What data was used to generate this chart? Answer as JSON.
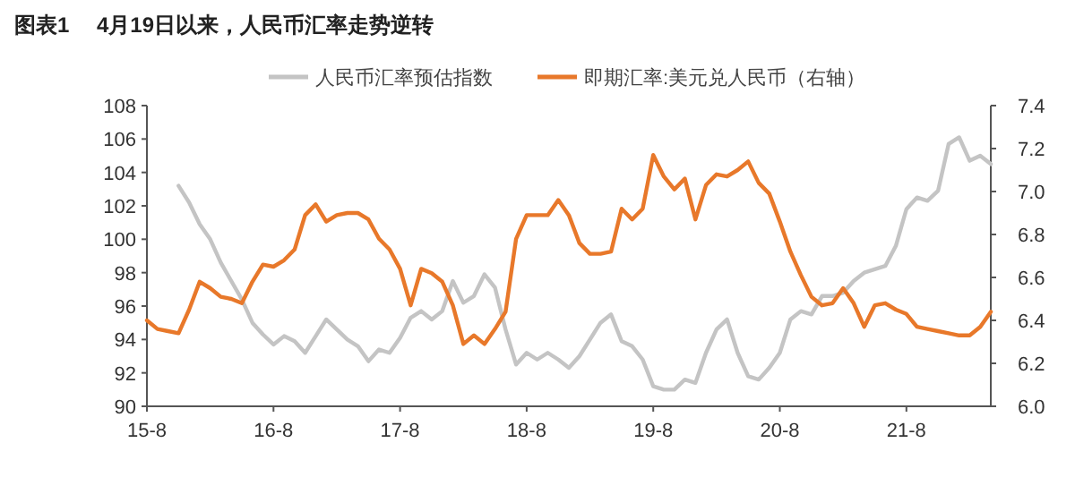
{
  "chart_data": {
    "type": "line",
    "title": "图表1　 4月19日以来，人民币汇率走势逆转",
    "legend": "top",
    "grid": false,
    "marker": "none",
    "line_style": "solid",
    "categories": [
      "15-8",
      null,
      null,
      null,
      null,
      null,
      null,
      null,
      null,
      null,
      null,
      null,
      "16-8",
      null,
      null,
      null,
      null,
      null,
      null,
      null,
      null,
      null,
      null,
      null,
      "17-8",
      null,
      null,
      null,
      null,
      null,
      null,
      null,
      null,
      null,
      null,
      null,
      "18-8",
      null,
      null,
      null,
      null,
      null,
      null,
      null,
      null,
      null,
      null,
      null,
      "19-8",
      null,
      null,
      null,
      null,
      null,
      null,
      null,
      null,
      null,
      null,
      null,
      "20-8",
      null,
      null,
      null,
      null,
      null,
      null,
      null,
      null,
      null,
      null,
      null,
      "21-8",
      null,
      null,
      null,
      null,
      null,
      null,
      null,
      null
    ],
    "ylim": [
      90,
      108
    ],
    "yticks": [
      90,
      92,
      94,
      96,
      98,
      100,
      102,
      104,
      106,
      108
    ],
    "y2lim": [
      6.0,
      7.4
    ],
    "y2ticks": [
      {
        "value": 6.0,
        "label": "6.0"
      },
      {
        "value": 6.2,
        "label": "6.2"
      },
      {
        "value": 6.4,
        "label": "6.4"
      },
      {
        "value": 6.6,
        "label": "6.6"
      },
      {
        "value": 6.8,
        "label": "6.8"
      },
      {
        "value": 7.0,
        "label": "7.0"
      },
      {
        "value": 7.2,
        "label": "7.2"
      },
      {
        "value": 7.4,
        "label": "7.4"
      }
    ],
    "series": [
      {
        "name": "人民币汇率预估指数",
        "color": "#c4c4c4",
        "axis": "y",
        "values": [
          null,
          null,
          null,
          103.2,
          102.2,
          100.9,
          100.0,
          98.6,
          97.5,
          96.4,
          95.0,
          94.3,
          93.7,
          94.2,
          93.9,
          93.2,
          94.2,
          95.2,
          94.6,
          94.0,
          93.6,
          92.7,
          93.4,
          93.2,
          94.1,
          95.3,
          95.7,
          95.2,
          95.7,
          97.5,
          96.2,
          96.6,
          97.9,
          97.1,
          94.6,
          92.5,
          93.2,
          92.8,
          93.2,
          92.8,
          92.3,
          93.0,
          94.0,
          95.0,
          95.5,
          93.9,
          93.6,
          92.8,
          91.2,
          91.0,
          91.0,
          91.6,
          91.4,
          93.2,
          94.6,
          95.2,
          93.2,
          91.8,
          91.6,
          92.3,
          93.2,
          95.2,
          95.7,
          95.5,
          96.6,
          96.6,
          96.8,
          97.5,
          98.0,
          98.2,
          98.4,
          99.6,
          101.8,
          102.5,
          102.3,
          102.9,
          105.7,
          106.1,
          104.7,
          105.0,
          104.5
        ]
      },
      {
        "name": "即期汇率:美元兑人民币（右轴）",
        "color": "#e8782a",
        "axis": "y2",
        "values": [
          6.4,
          6.36,
          6.35,
          6.34,
          6.45,
          6.58,
          6.55,
          6.51,
          6.5,
          6.48,
          6.58,
          6.66,
          6.65,
          6.68,
          6.73,
          6.89,
          6.94,
          6.86,
          6.89,
          6.9,
          6.9,
          6.87,
          6.78,
          6.73,
          6.64,
          6.47,
          6.64,
          6.62,
          6.58,
          6.47,
          6.29,
          6.33,
          6.29,
          6.36,
          6.44,
          6.78,
          6.89,
          6.89,
          6.89,
          6.96,
          6.89,
          6.76,
          6.71,
          6.71,
          6.72,
          6.92,
          6.87,
          6.92,
          7.17,
          7.07,
          7.01,
          7.06,
          6.87,
          7.03,
          7.08,
          7.07,
          7.1,
          7.14,
          7.04,
          6.99,
          6.86,
          6.72,
          6.61,
          6.51,
          6.47,
          6.48,
          6.55,
          6.48,
          6.37,
          6.47,
          6.48,
          6.45,
          6.43,
          6.37,
          6.36,
          6.35,
          6.34,
          6.33,
          6.33,
          6.37,
          6.44
        ]
      }
    ]
  }
}
